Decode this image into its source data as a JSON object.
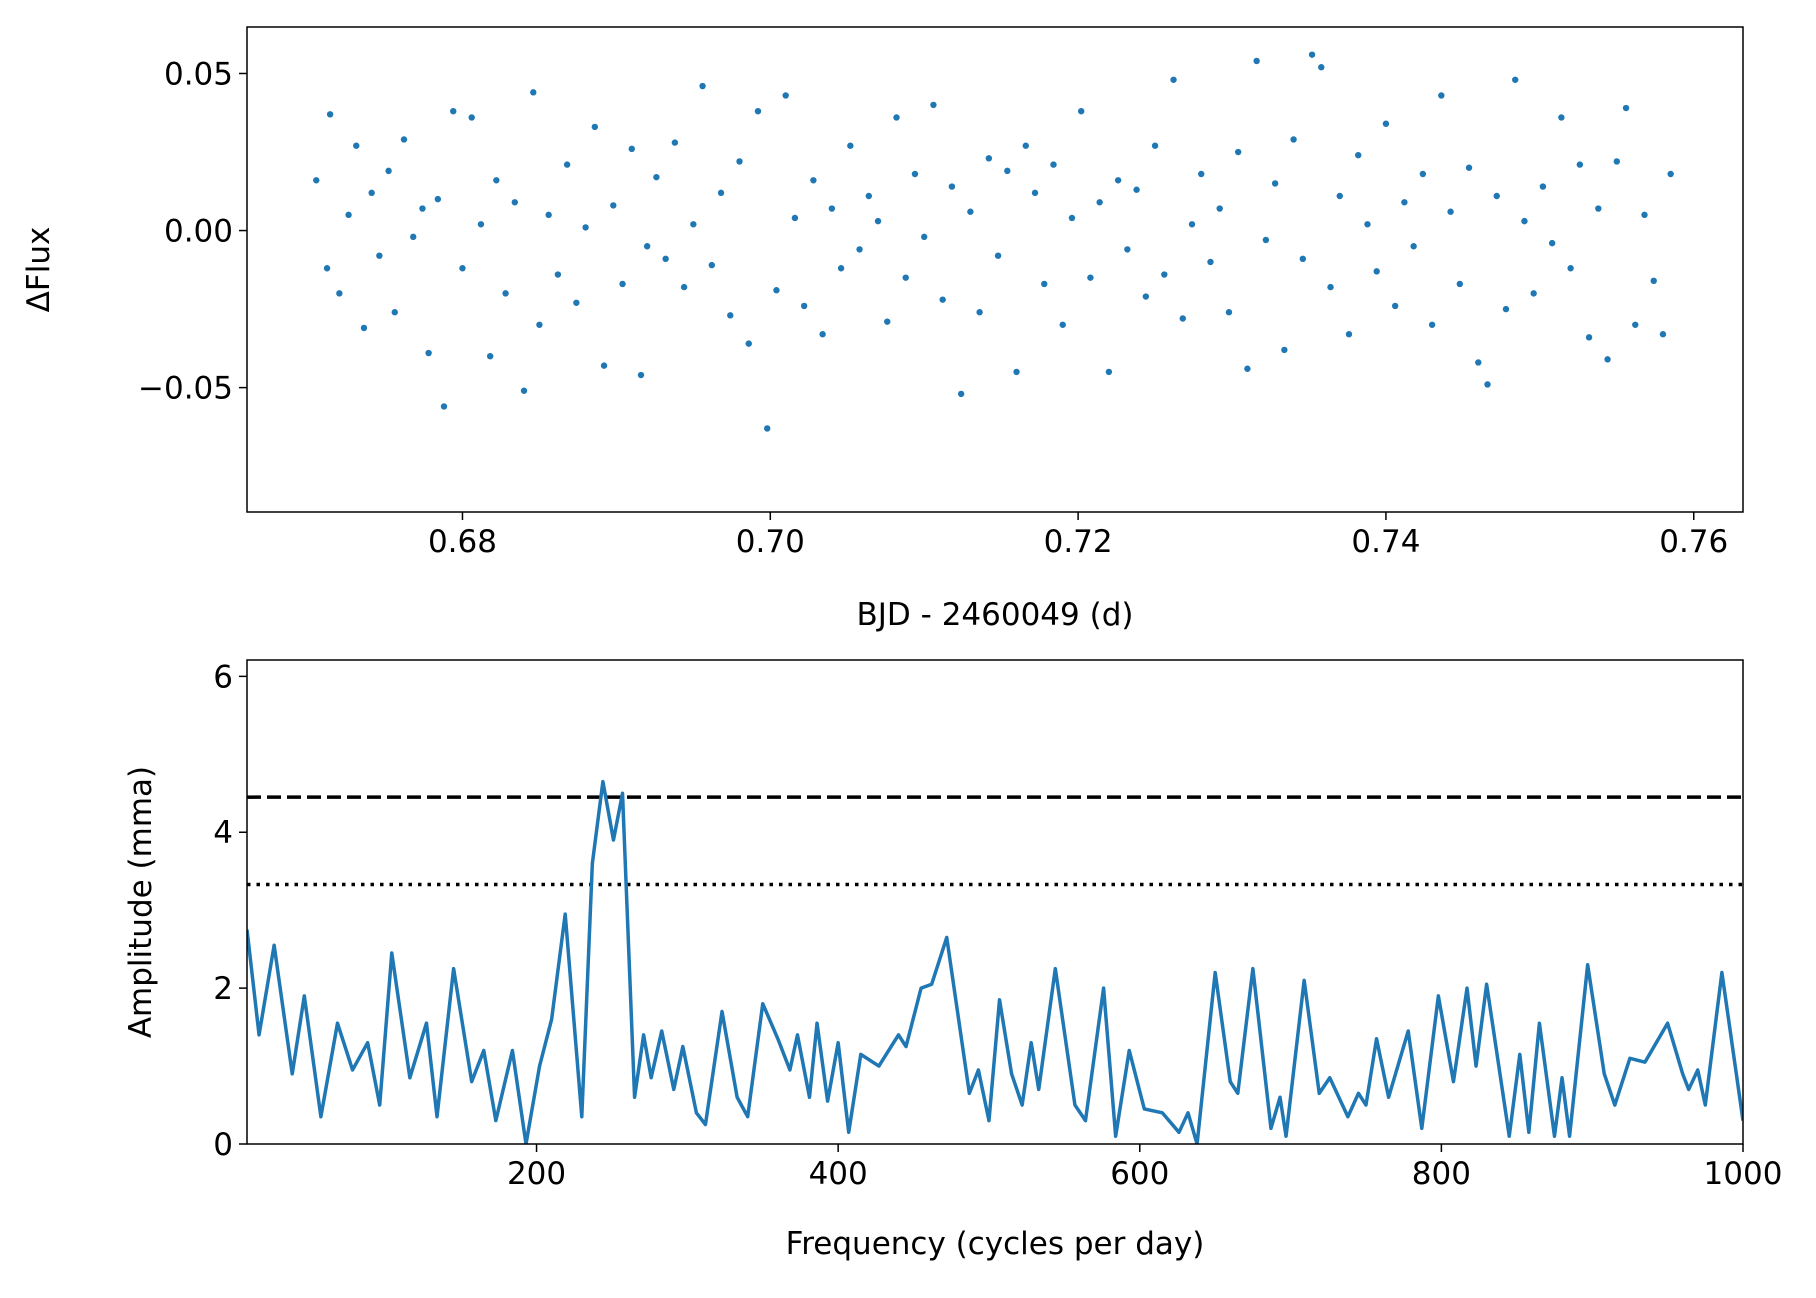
{
  "chart_data": [
    {
      "type": "scatter",
      "xlabel": "BJD - 2460049 (d)",
      "ylabel": "ΔFlux",
      "color": "#1f77b4",
      "x": [
        0.6705,
        0.6712,
        0.6714,
        0.672,
        0.6726,
        0.6731,
        0.6736,
        0.6741,
        0.6746,
        0.6752,
        0.6756,
        0.6762,
        0.6768,
        0.6774,
        0.6778,
        0.6784,
        0.6788,
        0.6794,
        0.68,
        0.6806,
        0.6812,
        0.6818,
        0.6822,
        0.6828,
        0.6834,
        0.684,
        0.6846,
        0.685,
        0.6856,
        0.6862,
        0.6868,
        0.6874,
        0.688,
        0.6886,
        0.6892,
        0.6898,
        0.6904,
        0.691,
        0.6916,
        0.692,
        0.6926,
        0.6932,
        0.6938,
        0.6944,
        0.695,
        0.6956,
        0.6962,
        0.6968,
        0.6974,
        0.698,
        0.6986,
        0.6992,
        0.6998,
        0.7004,
        0.701,
        0.7016,
        0.7022,
        0.7028,
        0.7034,
        0.704,
        0.7046,
        0.7052,
        0.7058,
        0.7064,
        0.707,
        0.7076,
        0.7082,
        0.7088,
        0.7094,
        0.71,
        0.7106,
        0.7112,
        0.7118,
        0.7124,
        0.713,
        0.7136,
        0.7142,
        0.7148,
        0.7154,
        0.716,
        0.7166,
        0.7172,
        0.7178,
        0.7184,
        0.719,
        0.7196,
        0.7202,
        0.7208,
        0.7214,
        0.722,
        0.7226,
        0.7232,
        0.7238,
        0.7244,
        0.725,
        0.7256,
        0.7262,
        0.7268,
        0.7274,
        0.728,
        0.7286,
        0.7292,
        0.7298,
        0.7304,
        0.731,
        0.7316,
        0.7322,
        0.7328,
        0.7334,
        0.734,
        0.7346,
        0.7352,
        0.7358,
        0.7364,
        0.737,
        0.7376,
        0.7382,
        0.7388,
        0.7394,
        0.74,
        0.7406,
        0.7412,
        0.7418,
        0.7424,
        0.743,
        0.7436,
        0.7442,
        0.7448,
        0.7454,
        0.746,
        0.7466,
        0.7472,
        0.7478,
        0.7484,
        0.749,
        0.7496,
        0.7502,
        0.7508,
        0.7514,
        0.752,
        0.7526,
        0.7532,
        0.7538,
        0.7544,
        0.755,
        0.7556,
        0.7562,
        0.7568,
        0.7574,
        0.758,
        0.7585
      ],
      "values": [
        0.016,
        -0.012,
        0.037,
        -0.02,
        0.005,
        0.027,
        -0.031,
        0.012,
        -0.008,
        0.019,
        -0.026,
        0.029,
        -0.002,
        0.007,
        -0.039,
        0.01,
        -0.056,
        0.038,
        -0.012,
        0.036,
        0.002,
        -0.04,
        0.016,
        -0.02,
        0.009,
        -0.051,
        0.044,
        -0.03,
        0.005,
        -0.014,
        0.021,
        -0.023,
        0.001,
        0.033,
        -0.043,
        0.008,
        -0.017,
        0.026,
        -0.046,
        -0.005,
        0.017,
        -0.009,
        0.028,
        -0.018,
        0.002,
        0.046,
        -0.011,
        0.012,
        -0.027,
        0.022,
        -0.036,
        0.038,
        -0.063,
        -0.019,
        0.043,
        0.004,
        -0.024,
        0.016,
        -0.033,
        0.007,
        -0.012,
        0.027,
        -0.006,
        0.011,
        0.003,
        -0.029,
        0.036,
        -0.015,
        0.018,
        -0.002,
        0.04,
        -0.022,
        0.014,
        -0.052,
        0.006,
        -0.026,
        0.023,
        -0.008,
        0.019,
        -0.045,
        0.027,
        0.012,
        -0.017,
        0.021,
        -0.03,
        0.004,
        0.038,
        -0.015,
        0.009,
        -0.045,
        0.016,
        -0.006,
        0.013,
        -0.021,
        0.027,
        -0.014,
        0.048,
        -0.028,
        0.002,
        0.018,
        -0.01,
        0.007,
        -0.026,
        0.025,
        -0.044,
        0.054,
        -0.003,
        0.015,
        -0.038,
        0.029,
        -0.009,
        0.056,
        0.052,
        -0.018,
        0.011,
        -0.033,
        0.024,
        0.002,
        -0.013,
        0.034,
        -0.024,
        0.009,
        -0.005,
        0.018,
        -0.03,
        0.043,
        0.006,
        -0.017,
        0.02,
        -0.042,
        -0.049,
        0.011,
        -0.025,
        0.048,
        0.003,
        -0.02,
        0.014,
        -0.004,
        0.036,
        -0.012,
        0.021,
        -0.034,
        0.007,
        -0.041,
        0.022,
        0.039,
        -0.03,
        0.005,
        -0.016,
        -0.033,
        0.018
      ],
      "xlim": [
        0.666,
        0.7632
      ],
      "ylim": [
        -0.0896,
        0.0648
      ],
      "xticks": [
        0.68,
        {
          "value": 0.7,
          "label": "0.70"
        },
        0.72,
        0.74,
        0.76
      ],
      "yticks": [
        {
          "value": -0.05,
          "label": "−0.05"
        },
        {
          "value": 0,
          "label": "0.00"
        },
        0.05
      ]
    },
    {
      "type": "line",
      "xlabel": "Frequency (cycles per day)",
      "ylabel": "Amplitude (mma)",
      "color": "#1f77b4",
      "x": [
        8,
        16,
        26,
        38,
        46,
        57,
        68,
        78,
        88,
        96,
        104,
        116,
        127,
        134,
        145,
        157,
        165,
        173,
        184,
        193,
        202,
        210,
        219,
        230,
        237,
        244,
        251,
        257,
        265,
        271,
        276,
        283,
        291,
        297,
        306,
        312,
        323,
        333,
        340,
        350,
        360,
        368,
        373,
        381,
        386,
        393,
        400,
        407,
        415,
        427,
        440,
        445,
        455,
        462,
        472,
        487,
        493,
        500,
        507,
        515,
        522,
        528,
        533,
        544,
        557,
        564,
        576,
        584,
        593,
        603,
        615,
        626,
        632,
        638,
        650,
        660,
        665,
        675,
        687,
        693,
        697,
        709,
        719,
        726,
        738,
        745,
        750,
        757,
        765,
        778,
        787,
        798,
        808,
        817,
        823,
        830,
        845,
        852,
        858,
        865,
        875,
        880,
        885,
        897,
        908,
        915,
        925,
        935,
        950,
        960,
        964,
        970,
        975,
        986,
        1000
      ],
      "values": [
        2.75,
        1.4,
        2.55,
        0.9,
        1.9,
        0.35,
        1.55,
        0.95,
        1.3,
        0.5,
        2.45,
        0.85,
        1.55,
        0.35,
        2.25,
        0.8,
        1.2,
        0.3,
        1.2,
        0,
        1.0,
        1.6,
        2.95,
        0.35,
        3.6,
        4.65,
        3.9,
        4.5,
        0.6,
        1.4,
        0.85,
        1.45,
        0.7,
        1.25,
        0.4,
        0.25,
        1.7,
        0.6,
        0.35,
        1.8,
        1.35,
        0.95,
        1.4,
        0.6,
        1.55,
        0.55,
        1.3,
        0.15,
        1.15,
        1.0,
        1.4,
        1.25,
        2.0,
        2.05,
        2.65,
        0.65,
        0.95,
        0.3,
        1.85,
        0.9,
        0.5,
        1.3,
        0.7,
        2.25,
        0.5,
        0.3,
        2.0,
        0.1,
        1.2,
        0.45,
        0.4,
        0.15,
        0.4,
        0,
        2.2,
        0.8,
        0.65,
        2.25,
        0.2,
        0.6,
        0.1,
        2.1,
        0.65,
        0.85,
        0.35,
        0.65,
        0.5,
        1.35,
        0.6,
        1.45,
        0.2,
        1.9,
        0.8,
        2.0,
        1.0,
        2.05,
        0.1,
        1.15,
        0.15,
        1.55,
        0.1,
        0.85,
        0.1,
        2.3,
        0.9,
        0.5,
        1.1,
        1.05,
        1.55,
        0.9,
        0.7,
        0.95,
        0.5,
        2.2,
        0.3
      ],
      "hlines": [
        {
          "value": 4.45,
          "style": "dashed",
          "color": "#000000"
        },
        {
          "value": 3.33,
          "style": "dotted",
          "color": "#000000"
        }
      ],
      "xlim": [
        8,
        1000
      ],
      "ylim": [
        0,
        6.21
      ],
      "xticks": [
        200,
        400,
        600,
        800,
        1000
      ],
      "yticks": [
        0,
        2,
        4,
        6
      ]
    }
  ]
}
